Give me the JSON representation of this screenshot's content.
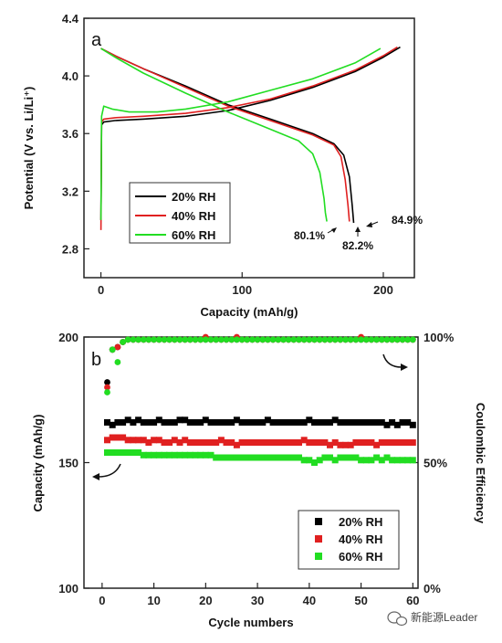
{
  "chart_data": [
    {
      "type": "line",
      "panel_label": "a",
      "xlabel": "Capacity (mAh/g)",
      "ylabel": "Potential (V vs. Li/Li⁺)",
      "xlim": [
        -12,
        222
      ],
      "ylim": [
        2.6,
        4.4
      ],
      "xticks": [
        0,
        100,
        200
      ],
      "yticks": [
        2.8,
        3.2,
        3.6,
        4.0,
        4.4
      ],
      "xtick_labels": [
        "0",
        "100",
        "200"
      ],
      "ytick_labels": [
        "2.8",
        "3.2",
        "3.6",
        "4.0",
        "4.4"
      ],
      "legend_position": "bottom-left",
      "series": [
        {
          "name": "20% RH",
          "color": "#000000",
          "charge": [
            [
              0,
              3.0
            ],
            [
              0.5,
              3.66
            ],
            [
              2,
              3.68
            ],
            [
              10,
              3.69
            ],
            [
              30,
              3.7
            ],
            [
              60,
              3.72
            ],
            [
              90,
              3.76
            ],
            [
              120,
              3.83
            ],
            [
              150,
              3.92
            ],
            [
              180,
              4.03
            ],
            [
              200,
              4.13
            ],
            [
              212,
              4.2
            ]
          ],
          "discharge": [
            [
              0,
              4.19
            ],
            [
              10,
              4.14
            ],
            [
              30,
              4.05
            ],
            [
              60,
              3.93
            ],
            [
              90,
              3.8
            ],
            [
              120,
              3.7
            ],
            [
              150,
              3.6
            ],
            [
              165,
              3.53
            ],
            [
              172,
              3.45
            ],
            [
              176,
              3.3
            ],
            [
              178,
              3.1
            ],
            [
              179,
              2.98
            ]
          ]
        },
        {
          "name": "40% RH",
          "color": "#e02020",
          "charge": [
            [
              0,
              2.93
            ],
            [
              0.5,
              3.68
            ],
            [
              2,
              3.7
            ],
            [
              10,
              3.71
            ],
            [
              30,
              3.72
            ],
            [
              60,
              3.74
            ],
            [
              90,
              3.78
            ],
            [
              120,
              3.84
            ],
            [
              150,
              3.93
            ],
            [
              180,
              4.04
            ],
            [
              200,
              4.14
            ],
            [
              210,
              4.2
            ]
          ],
          "discharge": [
            [
              0,
              4.19
            ],
            [
              10,
              4.14
            ],
            [
              30,
              4.05
            ],
            [
              60,
              3.92
            ],
            [
              90,
              3.79
            ],
            [
              120,
              3.69
            ],
            [
              150,
              3.59
            ],
            [
              165,
              3.52
            ],
            [
              170,
              3.44
            ],
            [
              173,
              3.28
            ],
            [
              175,
              3.1
            ],
            [
              176,
              2.99
            ]
          ]
        },
        {
          "name": "60% RH",
          "color": "#22dd22",
          "charge": [
            [
              0,
              3.0
            ],
            [
              0.5,
              3.72
            ],
            [
              2,
              3.79
            ],
            [
              8,
              3.77
            ],
            [
              20,
              3.75
            ],
            [
              40,
              3.75
            ],
            [
              60,
              3.77
            ],
            [
              90,
              3.82
            ],
            [
              120,
              3.9
            ],
            [
              150,
              3.98
            ],
            [
              180,
              4.09
            ],
            [
              198,
              4.19
            ]
          ],
          "discharge": [
            [
              0,
              4.19
            ],
            [
              10,
              4.13
            ],
            [
              30,
              4.02
            ],
            [
              60,
              3.88
            ],
            [
              90,
              3.75
            ],
            [
              120,
              3.63
            ],
            [
              140,
              3.55
            ],
            [
              150,
              3.46
            ],
            [
              155,
              3.33
            ],
            [
              158,
              3.15
            ],
            [
              159,
              3.05
            ],
            [
              160,
              2.99
            ]
          ]
        }
      ],
      "annotations": [
        "84.9%",
        "82.2%",
        "80.1%"
      ]
    },
    {
      "type": "scatter",
      "panel_label": "b",
      "xlabel": "Cycle numbers",
      "ylabel": "Capacity (mAh/g)",
      "ylabel_right": "Coulombic Efficiency",
      "xlim": [
        -3.5,
        61
      ],
      "ylim": [
        100,
        200
      ],
      "ylim_right": [
        0,
        100
      ],
      "xticks": [
        0,
        10,
        20,
        30,
        40,
        50,
        60
      ],
      "yticks": [
        100,
        150,
        200
      ],
      "yticks_right": [
        0,
        50,
        100
      ],
      "xtick_labels": [
        "0",
        "10",
        "20",
        "30",
        "40",
        "50",
        "60"
      ],
      "ytick_labels": [
        "100",
        "150",
        "200"
      ],
      "ytick_labels_right": [
        "0%",
        "50%",
        "100%"
      ],
      "legend_position": "bottom-right",
      "series": [
        {
          "name": "20% RH",
          "color": "#000000",
          "capacity": [
            166,
            165,
            166,
            166,
            167,
            166,
            167,
            166,
            166,
            166,
            167,
            166,
            166,
            166,
            167,
            167,
            166,
            166,
            166,
            167,
            166,
            166,
            166,
            166,
            166,
            167,
            166,
            166,
            166,
            166,
            166,
            167,
            166,
            166,
            166,
            166,
            166,
            166,
            166,
            167,
            166,
            166,
            166,
            166,
            167,
            166,
            166,
            166,
            166,
            166,
            166,
            166,
            166,
            166,
            165,
            166,
            165,
            166,
            166,
            165
          ],
          "efficiency": [
            82,
            95,
            96,
            98,
            99,
            99,
            99,
            99,
            99,
            99,
            99,
            99,
            99,
            99,
            99,
            99,
            99,
            99,
            99,
            99,
            99,
            99,
            99,
            99,
            99,
            99,
            99,
            99,
            99,
            99,
            99,
            99,
            99,
            99,
            99,
            99,
            99,
            99,
            99,
            99,
            99,
            99,
            99,
            99,
            99,
            99,
            99,
            99,
            99,
            99,
            99,
            99,
            99,
            99,
            99,
            99,
            99,
            99,
            99,
            99
          ]
        },
        {
          "name": "40% RH",
          "color": "#e02020",
          "capacity": [
            159,
            160,
            160,
            160,
            159,
            159,
            159,
            159,
            158,
            159,
            159,
            158,
            158,
            159,
            158,
            159,
            158,
            158,
            158,
            158,
            158,
            158,
            159,
            158,
            158,
            157,
            158,
            158,
            158,
            158,
            158,
            158,
            158,
            158,
            158,
            158,
            158,
            158,
            159,
            158,
            158,
            158,
            158,
            157,
            158,
            157,
            157,
            157,
            158,
            158,
            158,
            158,
            157,
            158,
            158,
            158,
            158,
            158,
            158,
            158
          ],
          "efficiency": [
            80,
            95,
            96,
            98,
            99,
            99,
            99,
            99,
            99,
            99,
            99,
            99,
            99,
            99,
            99,
            99,
            99,
            99,
            99,
            100,
            99,
            99,
            99,
            99,
            99,
            100,
            99,
            99,
            99,
            99,
            99,
            99,
            99,
            99,
            99,
            99,
            99,
            99,
            99,
            99,
            99,
            99,
            99,
            99,
            99,
            99,
            99,
            99,
            99,
            100,
            99,
            99,
            99,
            99,
            99,
            99,
            99,
            99,
            99,
            99
          ]
        },
        {
          "name": "60% RH",
          "color": "#22dd22",
          "capacity": [
            154,
            154,
            154,
            154,
            154,
            154,
            154,
            153,
            153,
            153,
            153,
            153,
            153,
            153,
            153,
            153,
            153,
            153,
            153,
            153,
            153,
            152,
            152,
            152,
            152,
            152,
            152,
            152,
            152,
            152,
            152,
            152,
            152,
            152,
            152,
            152,
            152,
            152,
            151,
            151,
            150,
            151,
            152,
            152,
            151,
            152,
            152,
            152,
            152,
            151,
            151,
            151,
            152,
            151,
            152,
            151,
            151,
            151,
            151,
            151
          ],
          "efficiency": [
            78,
            95,
            90,
            98,
            99,
            99,
            99,
            99,
            99,
            99,
            99,
            99,
            99,
            99,
            99,
            99,
            99,
            99,
            99,
            99,
            99,
            99,
            99,
            99,
            99,
            99,
            99,
            99,
            99,
            99,
            99,
            99,
            99,
            99,
            99,
            99,
            99,
            99,
            99,
            99,
            99,
            99,
            99,
            99,
            99,
            99,
            99,
            99,
            99,
            99,
            99,
            99,
            99,
            99,
            99,
            99,
            99,
            99,
            99,
            99
          ]
        }
      ]
    }
  ],
  "watermark": {
    "text": "新能源Leader",
    "icon": "wechat-icon"
  }
}
